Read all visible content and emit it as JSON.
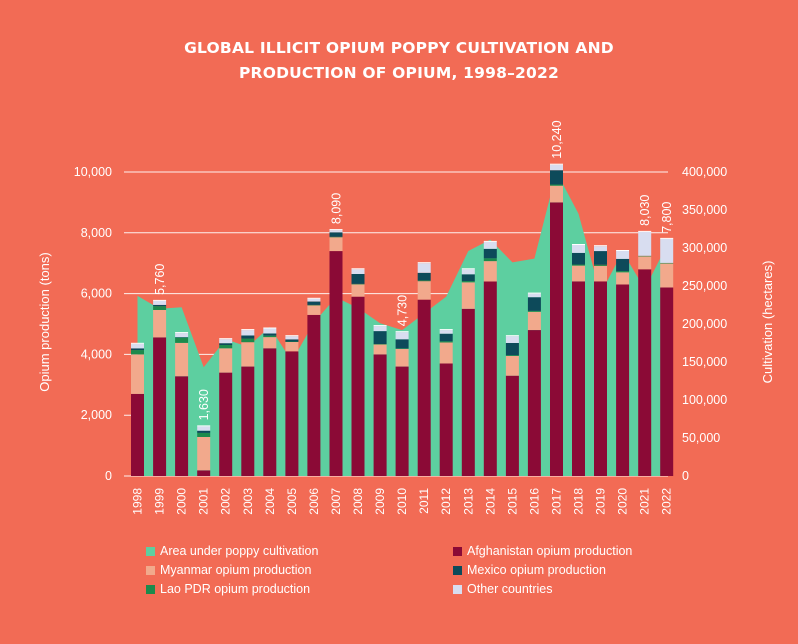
{
  "chart_data": {
    "type": "bar",
    "title_lines": [
      "GLOBAL ILLICIT OPIUM POPPY CULTIVATION AND",
      "PRODUCTION OF OPIUM, 1998–2022"
    ],
    "ylabel_left": "Opium production (tons)",
    "ylabel_right": "Cultivation (hectares)",
    "ylim_left": [
      0,
      10000
    ],
    "ylim_right": [
      0,
      400000
    ],
    "yticks_left": [
      "0",
      "2,000",
      "4,000",
      "6,000",
      "8,000",
      "10,000"
    ],
    "yticks_right": [
      "0",
      "50,000",
      "100,000",
      "150,000",
      "200,000",
      "250,000",
      "300,000",
      "350,000",
      "400,000"
    ],
    "categories": [
      "1998",
      "1999",
      "2000",
      "2001",
      "2002",
      "2003",
      "2004",
      "2005",
      "2006",
      "2007",
      "2008",
      "2009",
      "2010",
      "2011",
      "2012",
      "2013",
      "2014",
      "2015",
      "2016",
      "2017",
      "2018",
      "2019",
      "2020",
      "2021",
      "2022"
    ],
    "area": {
      "name": "Area under poppy cultivation",
      "color": "#5DCFA0",
      "values": [
        237000,
        220000,
        222000,
        143000,
        180000,
        170000,
        196000,
        151000,
        202000,
        235000,
        221000,
        201000,
        192000,
        214000,
        236000,
        296000,
        311000,
        281000,
        286000,
        400000,
        345000,
        240000,
        295000,
        246000,
        303000
      ]
    },
    "series": [
      {
        "name": "Afghanistan opium production",
        "color": "#8B0A36",
        "values": [
          2700,
          4560,
          3280,
          185,
          3400,
          3600,
          4200,
          4100,
          5300,
          7400,
          5900,
          4000,
          3600,
          5800,
          3700,
          5500,
          6400,
          3300,
          4800,
          9000,
          6400,
          6400,
          6300,
          6800,
          6200
        ]
      },
      {
        "name": "Myanmar opium production",
        "color": "#F2A98C",
        "values": [
          1300,
          900,
          1100,
          1100,
          800,
          800,
          370,
          310,
          310,
          460,
          410,
          330,
          580,
          610,
          690,
          870,
          670,
          650,
          600,
          550,
          520,
          510,
          400,
          423,
          790
        ]
      },
      {
        "name": "Lao PDR opium production",
        "color": "#1D8A4C",
        "values": [
          140,
          124,
          167,
          134,
          112,
          120,
          43,
          14,
          20,
          9,
          10,
          11,
          18,
          25,
          41,
          41,
          92,
          25,
          30,
          40,
          40,
          40,
          40,
          20,
          20
        ]
      },
      {
        "name": "Mexico opium production",
        "color": "#0D4A5A",
        "values": [
          60,
          43,
          21,
          71,
          58,
          101,
          73,
          71,
          108,
          149,
          325,
          425,
          300,
          250,
          250,
          225,
          310,
          400,
          450,
          470,
          380,
          450,
          400,
          0,
          0
        ]
      },
      {
        "name": "Other countries",
        "color": "#D8DDF0",
        "values": [
          150,
          133,
          132,
          140,
          130,
          179,
          166,
          105,
          90,
          72,
          155,
          164,
          232,
          315,
          119,
          164,
          228,
          225,
          120,
          180,
          260,
          160,
          260,
          787,
          790
        ]
      }
    ],
    "totals": [
      {
        "year": "1999",
        "label": "5,760"
      },
      {
        "year": "2001",
        "label": "1,630"
      },
      {
        "year": "2007",
        "label": "8,090"
      },
      {
        "year": "2010",
        "label": "4,730"
      },
      {
        "year": "2017",
        "label": "10,240"
      },
      {
        "year": "2021",
        "label": "8,030"
      },
      {
        "year": "2022",
        "label": "7,800"
      }
    ],
    "grid": true,
    "legend_position": "bottom"
  },
  "legend": [
    {
      "label": "Area under poppy cultivation",
      "color": "#5DCFA0"
    },
    {
      "label": "Afghanistan opium production",
      "color": "#8B0A36"
    },
    {
      "label": "Myanmar opium production",
      "color": "#F2A98C"
    },
    {
      "label": "Mexico opium production",
      "color": "#0D4A5A"
    },
    {
      "label": "Lao PDR opium production",
      "color": "#1D8A4C"
    },
    {
      "label": "Other countries",
      "color": "#D8DDF0"
    }
  ]
}
